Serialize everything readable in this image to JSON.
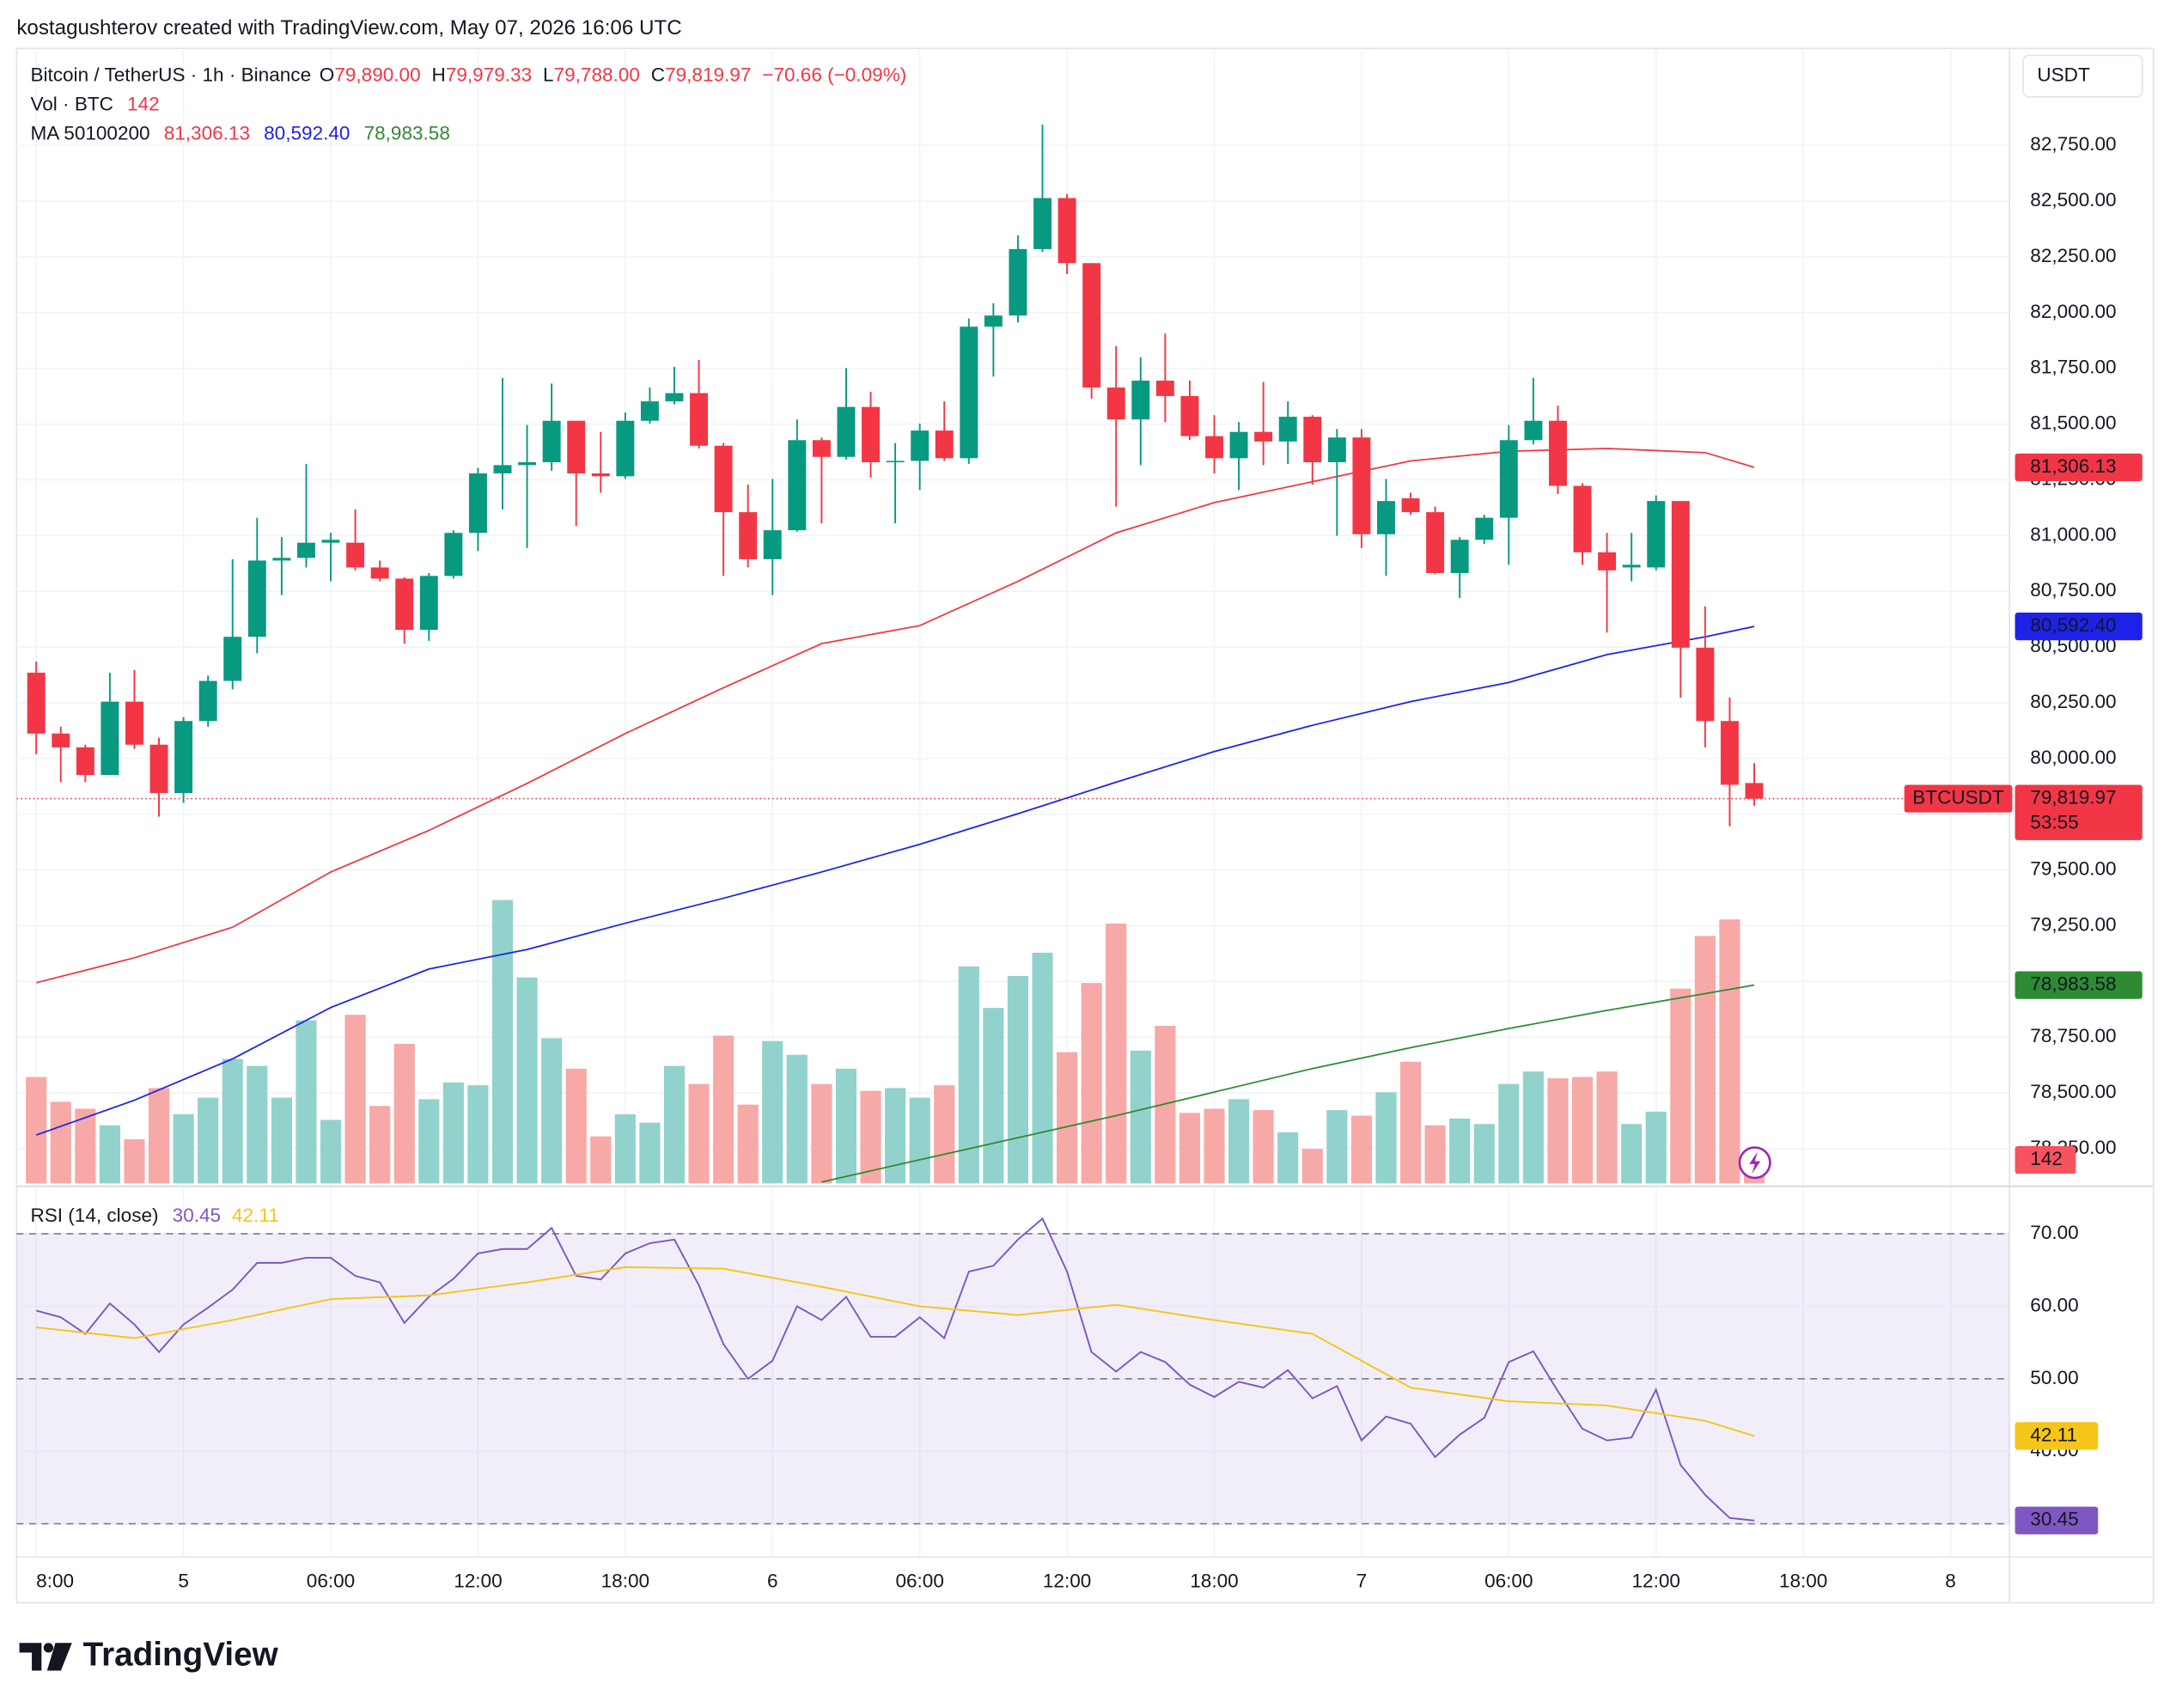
{
  "header": {
    "caption": "kostagushterov created with TradingView.com, May 07, 2026 16:06 UTC"
  },
  "footer": {
    "brand": "TradingView"
  },
  "chart_data": [
    {
      "type": "candlestick",
      "legend": {
        "symbol": "Bitcoin / TetherUS · 1h · Binance",
        "o": "O",
        "open": "79,890.00",
        "h": "H",
        "high": "79,979.33",
        "l": "L",
        "low": "79,788.00",
        "c": "C",
        "close": "79,819.97",
        "change": "−70.66 (−0.09%)"
      },
      "currency": "USDT",
      "ticker": "BTCUSDT",
      "countdown": "53:55",
      "x": [
        -6,
        -5,
        -4,
        -3,
        -2,
        -1,
        0,
        1,
        2,
        3,
        4,
        5,
        6,
        7,
        8,
        9,
        10,
        11,
        12,
        13,
        14,
        15,
        16,
        17,
        18,
        19,
        20,
        21,
        22,
        23,
        24,
        25,
        26,
        27,
        28,
        29,
        30,
        31,
        32,
        33,
        34,
        35,
        36,
        37,
        38,
        39,
        40,
        41,
        42,
        43,
        44,
        45,
        46,
        47,
        48,
        49,
        50,
        51,
        52,
        53,
        54,
        55,
        56,
        57,
        58,
        59,
        60,
        61,
        62,
        63,
        64
      ],
      "xlim": [
        -6.8,
        74.4
      ],
      "xticks": [
        {
          "value": -6,
          "label": "8:00"
        },
        {
          "value": 0,
          "label": "5"
        },
        {
          "value": 6,
          "label": "06:00"
        },
        {
          "value": 12,
          "label": "12:00"
        },
        {
          "value": 18,
          "label": "18:00"
        },
        {
          "value": 24,
          "label": "6"
        },
        {
          "value": 30,
          "label": "06:00"
        },
        {
          "value": 36,
          "label": "12:00"
        },
        {
          "value": 42,
          "label": "18:00"
        },
        {
          "value": 48,
          "label": "7"
        },
        {
          "value": 54,
          "label": "06:00"
        },
        {
          "value": 60,
          "label": "12:00"
        },
        {
          "value": 66,
          "label": "18:00"
        },
        {
          "value": 72,
          "label": "8"
        }
      ],
      "open": [
        80385,
        80112,
        80050,
        79926,
        80255,
        80062,
        79845,
        80168,
        80348,
        80546,
        80888,
        80900,
        80968,
        80968,
        80857,
        80807,
        80577,
        80819,
        81012,
        81279,
        81316,
        81329,
        81515,
        81279,
        81266,
        81515,
        81602,
        81639,
        81403,
        81105,
        80894,
        81024,
        81428,
        81353,
        81577,
        81329,
        81335,
        81471,
        81347,
        81937,
        81987,
        82285,
        82514,
        82222,
        81664,
        81521,
        81695,
        81626,
        81446,
        81347,
        81465,
        81422,
        81533,
        81329,
        81440,
        81006,
        81167,
        81105,
        80832,
        80981,
        81080,
        81428,
        81515,
        81223,
        80925,
        80857,
        80857,
        81155,
        80497,
        80168,
        79890
      ],
      "high": [
        80435,
        80143,
        80062,
        80385,
        80397,
        80093,
        80186,
        80372,
        80894,
        81080,
        80993,
        81322,
        81012,
        81117,
        80888,
        80813,
        80832,
        81024,
        81304,
        81707,
        81496,
        81682,
        81515,
        81465,
        81552,
        81664,
        81757,
        81788,
        81415,
        81229,
        81254,
        81521,
        81440,
        81751,
        81645,
        81415,
        81502,
        81602,
        81974,
        82042,
        82347,
        82843,
        82533,
        82222,
        81850,
        81800,
        81906,
        81695,
        81540,
        81509,
        81689,
        81602,
        81540,
        81478,
        81478,
        81254,
        81192,
        81130,
        80993,
        81093,
        81496,
        81707,
        81583,
        81235,
        81012,
        81012,
        81180,
        81155,
        80683,
        80273,
        79979.33
      ],
      "low": [
        80019,
        79894,
        79894,
        79926,
        80043,
        79739,
        79801,
        80143,
        80310,
        80472,
        80733,
        80857,
        80795,
        80844,
        80795,
        80515,
        80528,
        80807,
        80931,
        81117,
        80944,
        81291,
        81043,
        81192,
        81254,
        81502,
        81589,
        81391,
        80819,
        80857,
        80733,
        81018,
        81055,
        81341,
        81260,
        81055,
        81204,
        81335,
        81322,
        81713,
        81956,
        82272,
        82173,
        81614,
        81130,
        81316,
        81509,
        81428,
        81279,
        81204,
        81316,
        81322,
        81229,
        80999,
        80944,
        80819,
        81093,
        80826,
        80720,
        80962,
        80869,
        81409,
        81186,
        80869,
        80565,
        80795,
        80844,
        80273,
        80050,
        79696,
        79788
      ],
      "close": [
        80112,
        80050,
        79926,
        80255,
        80062,
        79845,
        80168,
        80348,
        80546,
        80888,
        80900,
        80968,
        80981,
        80857,
        80807,
        80577,
        80819,
        81012,
        81279,
        81316,
        81329,
        81515,
        81279,
        81266,
        81515,
        81602,
        81639,
        81403,
        81105,
        80894,
        81024,
        81428,
        81353,
        81577,
        81329,
        81335,
        81471,
        81347,
        81937,
        81987,
        82285,
        82514,
        82222,
        81664,
        81521,
        81695,
        81626,
        81446,
        81347,
        81465,
        81422,
        81533,
        81329,
        81440,
        81006,
        81155,
        81105,
        80832,
        80981,
        81080,
        81428,
        81515,
        81223,
        80925,
        80844,
        80869,
        81155,
        80497,
        80168,
        79882,
        79819.97
      ],
      "up_color": "#089981",
      "down_color": "#f23645",
      "ylim": [
        78094,
        83216
      ],
      "yticks": [
        {
          "value": 78250,
          "label": "78,250.00"
        },
        {
          "value": 78500,
          "label": "78,500.00"
        },
        {
          "value": 78750,
          "label": "78,750.00"
        },
        {
          "value": 79000,
          "label": "79,000.00"
        },
        {
          "value": 79250,
          "label": "79,250.00"
        },
        {
          "value": 79500,
          "label": "79,500.00"
        },
        {
          "value": 79750,
          "label": "79,750.00"
        },
        {
          "value": 80000,
          "label": "80,000.00"
        },
        {
          "value": 80250,
          "label": "80,250.00"
        },
        {
          "value": 80500,
          "label": "80,500.00"
        },
        {
          "value": 80750,
          "label": "80,750.00"
        },
        {
          "value": 81000,
          "label": "81,000.00"
        },
        {
          "value": 81250,
          "label": "81,250.00"
        },
        {
          "value": 81500,
          "label": "81,500.00"
        },
        {
          "value": 81750,
          "label": "81,750.00"
        },
        {
          "value": 82000,
          "label": "82,000.00"
        },
        {
          "value": 82250,
          "label": "82,250.00"
        },
        {
          "value": 82500,
          "label": "82,500.00"
        },
        {
          "value": 82750,
          "label": "82,750.00"
        }
      ],
      "grid": true,
      "volume": {
        "name": "Vol · BTC",
        "value_label": "142",
        "vlim": [
          0,
          2400
        ],
        "up_color": "#92d2cc",
        "down_color": "#f7a9a7",
        "values": [
          643,
          493,
          451,
          351,
          267,
          576,
          418,
          518,
          752,
          710,
          518,
          985,
          384,
          1019,
          468,
          843,
          509,
          610,
          593,
          1712,
          1244,
          877,
          693,
          284,
          418,
          367,
          710,
          601,
          893,
          476,
          860,
          777,
          601,
          693,
          559,
          576,
          518,
          593,
          1311,
          1060,
          1253,
          1394,
          793,
          1211,
          1570,
          802,
          952,
          426,
          451,
          509,
          443,
          309,
          209,
          443,
          409,
          551,
          735,
          351,
          392,
          359,
          601,
          676,
          635,
          643,
          676,
          359,
          434,
          1177,
          1495,
          1595,
          142
        ]
      },
      "ma": {
        "name": "MA 50100200",
        "series": [
          {
            "color": "#f23645",
            "value_label": "81,306.13",
            "x": [
              -6,
              -2,
              2,
              6,
              10,
              14,
              18,
              22,
              26,
              30,
              34,
              38,
              42,
              46,
              50,
              54,
              58,
              62,
              64
            ],
            "values": [
              78994,
              79106,
              79243,
              79491,
              79677,
              79888,
              80112,
              80317,
              80515,
              80596,
              80795,
              81012,
              81148,
              81242,
              81335,
              81378,
              81391,
              81372,
              81306.13
            ]
          },
          {
            "color": "#1e22e8",
            "value_label": "80,592.40",
            "x": [
              -6,
              -2,
              2,
              6,
              10,
              14,
              18,
              22,
              26,
              30,
              34,
              38,
              42,
              46,
              50,
              54,
              58,
              62,
              64
            ],
            "values": [
              78311,
              78467,
              78653,
              78883,
              79056,
              79143,
              79261,
              79373,
              79491,
              79615,
              79752,
              79894,
              80031,
              80149,
              80255,
              80341,
              80466,
              80546,
              80592.4
            ]
          },
          {
            "color": "#2e8b34",
            "value_label": "78,983.58",
            "x": [
              26,
              30,
              34,
              38,
              42,
              46,
              50,
              54,
              58,
              62,
              64
            ],
            "values": [
              78100,
              78200,
              78299,
              78398,
              78504,
              78609,
              78703,
              78789,
              78870,
              78945,
              78983.58
            ]
          }
        ]
      }
    },
    {
      "type": "line",
      "title": "RSI (14, close)",
      "ylim": [
        25.4,
        76
      ],
      "yticks": [
        {
          "value": 70,
          "label": "70.00"
        },
        {
          "value": 60,
          "label": "60.00"
        },
        {
          "value": 50,
          "label": "50.00"
        },
        {
          "value": 40,
          "label": "40.00"
        },
        {
          "value": 30,
          "label": "30.00"
        }
      ],
      "levels": [
        70,
        50,
        30
      ],
      "band_color": "#7e57c2",
      "series": [
        {
          "color": "#7e57c2",
          "text_color": "#ffffff",
          "value_label": "30.45",
          "x": [
            -6,
            -5,
            -4,
            -3,
            -2,
            -1,
            0,
            1,
            2,
            3,
            4,
            5,
            6,
            7,
            8,
            9,
            10,
            11,
            12,
            13,
            14,
            15,
            16,
            17,
            18,
            19,
            20,
            21,
            22,
            23,
            24,
            25,
            26,
            27,
            28,
            29,
            30,
            31,
            32,
            33,
            34,
            35,
            36,
            37,
            38,
            39,
            40,
            41,
            42,
            43,
            44,
            45,
            46,
            47,
            48,
            49,
            50,
            51,
            52,
            53,
            54,
            55,
            56,
            57,
            58,
            59,
            60,
            61,
            62,
            63,
            64
          ],
          "values": [
            59.4,
            58.5,
            56.2,
            60.4,
            57.5,
            53.7,
            57.5,
            59.8,
            62.3,
            66.0,
            66.0,
            66.7,
            66.7,
            64.2,
            63.3,
            57.7,
            61.3,
            63.8,
            67.3,
            67.9,
            67.9,
            70.8,
            64.2,
            63.7,
            67.3,
            68.7,
            69.2,
            62.9,
            54.8,
            50.0,
            52.5,
            60.0,
            58.1,
            61.3,
            55.8,
            55.8,
            58.5,
            55.6,
            64.8,
            65.6,
            69.2,
            72.1,
            64.8,
            53.7,
            51.0,
            53.7,
            52.3,
            49.2,
            47.5,
            49.6,
            48.8,
            51.2,
            47.3,
            49.0,
            41.5,
            44.8,
            43.8,
            39.2,
            42.3,
            44.6,
            52.3,
            53.8,
            48.3,
            43.1,
            41.5,
            41.9,
            48.5,
            38.1,
            34.0,
            30.8,
            30.45
          ]
        },
        {
          "color": "#f5c518",
          "text_color": "#131722",
          "value_label": "42.11",
          "x": [
            -6,
            -2,
            2,
            6,
            10,
            14,
            18,
            22,
            26,
            30,
            34,
            38,
            42,
            46,
            50,
            54,
            58,
            62,
            64
          ],
          "values": [
            57.1,
            55.6,
            58.1,
            61.0,
            61.5,
            63.3,
            65.4,
            65.2,
            62.7,
            60.0,
            58.8,
            60.2,
            58.1,
            56.2,
            48.8,
            46.9,
            46.3,
            44.2,
            42.11
          ]
        }
      ]
    }
  ]
}
